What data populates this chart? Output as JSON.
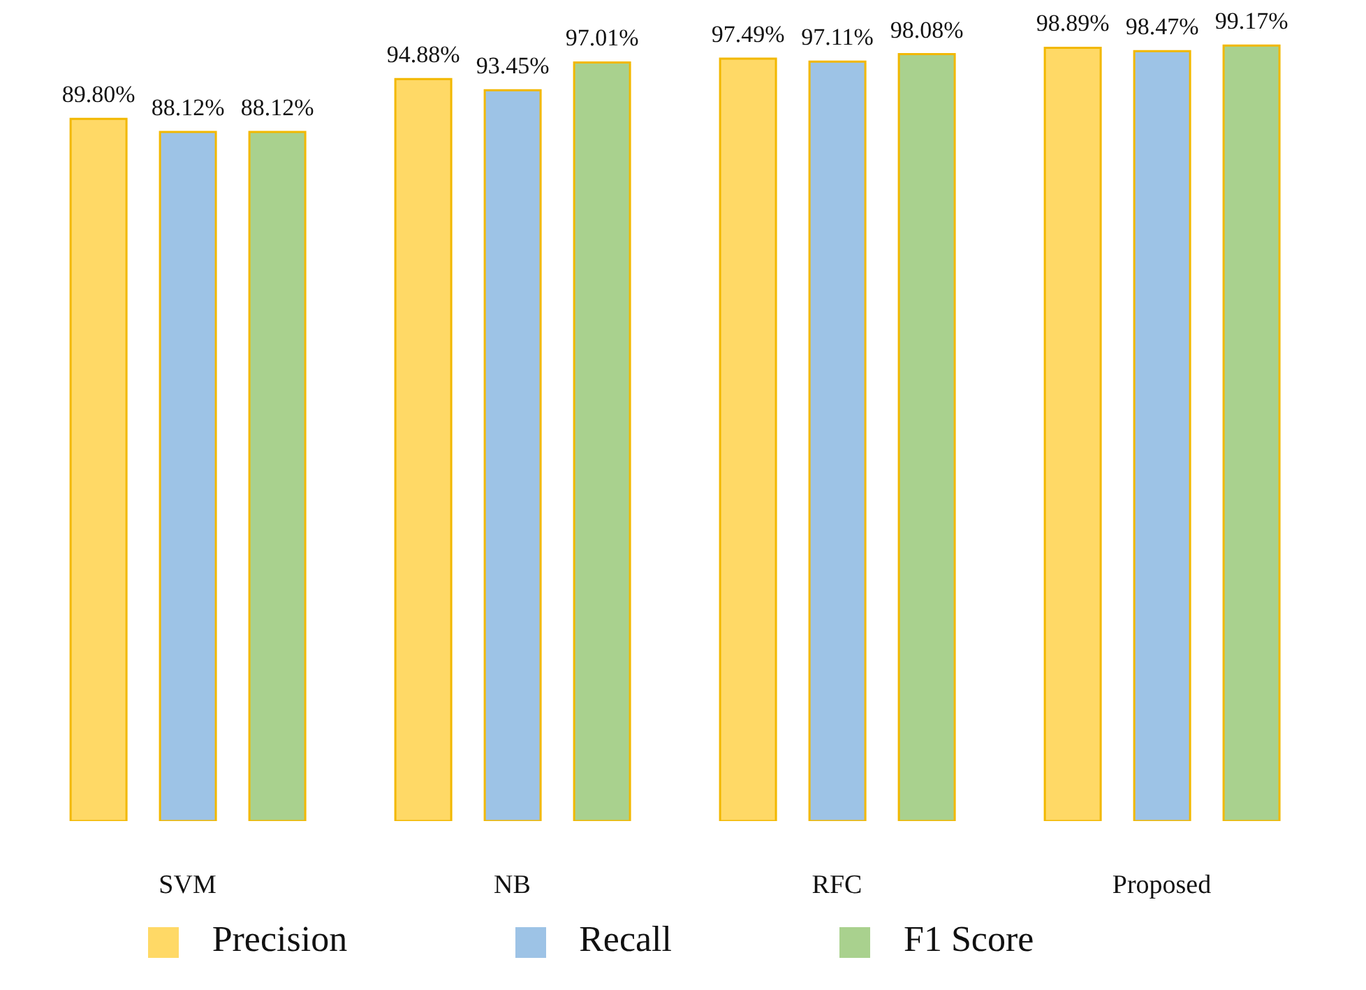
{
  "chart_data": {
    "type": "bar",
    "categories": [
      "SVM",
      "NB",
      "RFC",
      "Proposed"
    ],
    "series": [
      {
        "name": "Precision",
        "color": "#ffd966",
        "values": [
          89.8,
          94.88,
          97.49,
          98.89
        ],
        "value_labels": [
          "89.80%",
          "94.88%",
          "97.49%",
          "98.89%"
        ]
      },
      {
        "name": "Recall",
        "color": "#9dc3e6",
        "values": [
          88.12,
          93.45,
          97.11,
          98.47
        ],
        "value_labels": [
          "88.12%",
          "93.45%",
          "97.11%",
          "98.47%"
        ]
      },
      {
        "name": "F1 Score",
        "color": "#a9d18e",
        "values": [
          88.12,
          97.01,
          98.08,
          99.17
        ],
        "value_labels": [
          "88.12%",
          "97.01%",
          "98.08%",
          "99.17%"
        ]
      }
    ],
    "tick_labels": "x",
    "legend": "bottom"
  }
}
